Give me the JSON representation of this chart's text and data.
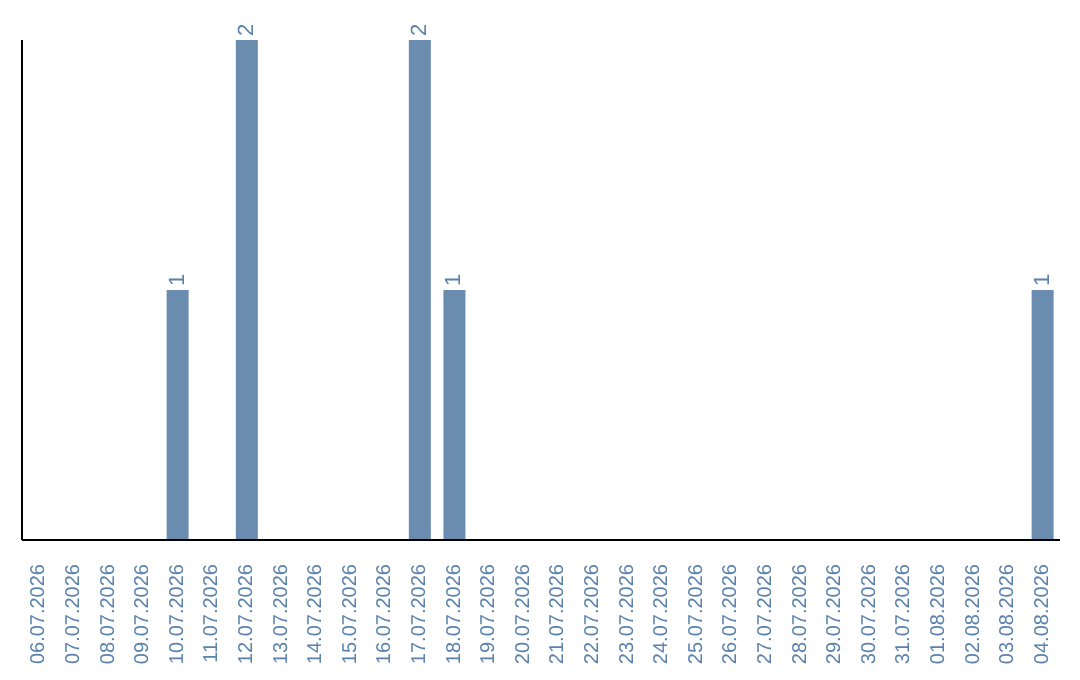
{
  "chart_data": {
    "type": "bar",
    "categories": [
      "06.07.2026",
      "07.07.2026",
      "08.07.2026",
      "09.07.2026",
      "10.07.2026",
      "11.07.2026",
      "12.07.2026",
      "13.07.2026",
      "14.07.2026",
      "15.07.2026",
      "16.07.2026",
      "17.07.2026",
      "18.07.2026",
      "19.07.2026",
      "20.07.2026",
      "21.07.2026",
      "22.07.2026",
      "23.07.2026",
      "24.07.2026",
      "25.07.2026",
      "26.07.2026",
      "27.07.2026",
      "28.07.2026",
      "29.07.2026",
      "30.07.2026",
      "31.07.2026",
      "01.08.2026",
      "02.08.2026",
      "03.08.2026",
      "04.08.2026"
    ],
    "values": [
      0,
      0,
      0,
      0,
      1,
      0,
      2,
      0,
      0,
      0,
      0,
      2,
      1,
      0,
      0,
      0,
      0,
      0,
      0,
      0,
      0,
      0,
      0,
      0,
      0,
      0,
      0,
      0,
      0,
      1
    ],
    "value_labels": [
      null,
      null,
      null,
      null,
      "1",
      null,
      "2",
      null,
      null,
      null,
      null,
      "2",
      "1",
      null,
      null,
      null,
      null,
      null,
      null,
      null,
      null,
      null,
      null,
      null,
      null,
      null,
      null,
      null,
      null,
      "1"
    ],
    "color": "#6a8caf",
    "grid": false,
    "legend": false
  }
}
